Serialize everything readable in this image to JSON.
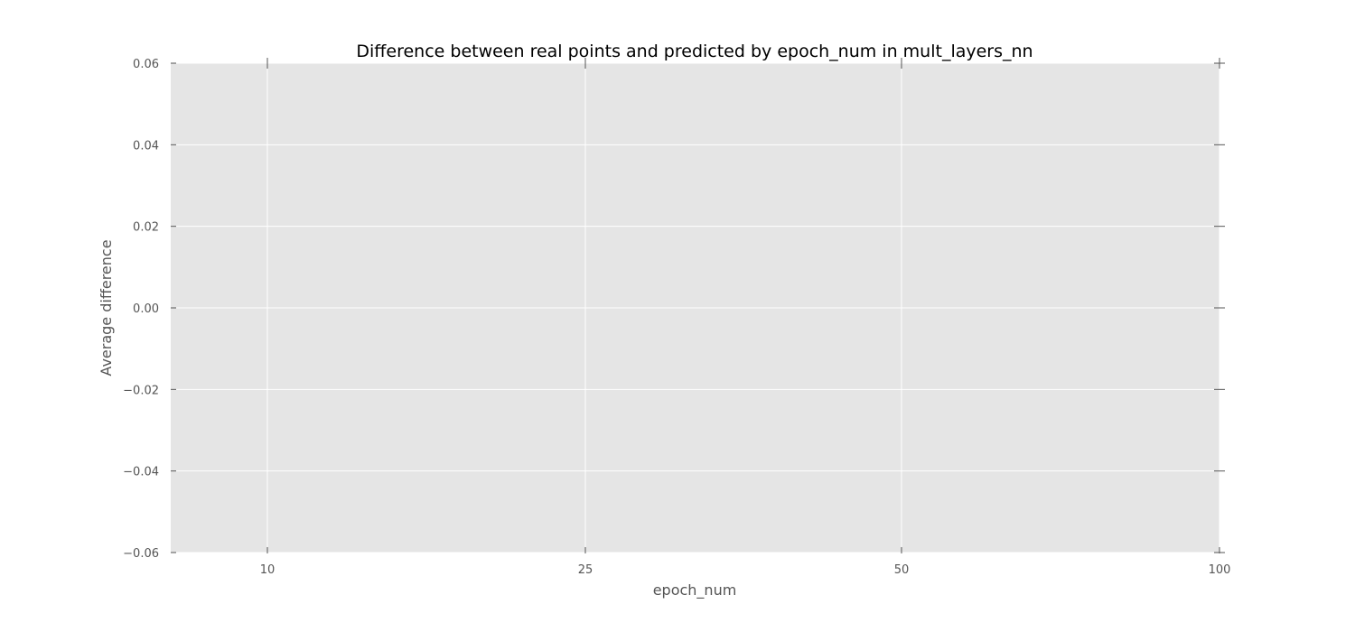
{
  "chart_data": {
    "type": "line",
    "title": "Difference between real points and predicted by epoch_num in mult_layers_nn",
    "xlabel": "epoch_num",
    "ylabel": "Average difference",
    "x_tick_labels": [
      "10",
      "25",
      "50",
      "100"
    ],
    "y_ticks": [
      0.06,
      0.04,
      0.02,
      0.0,
      -0.02,
      -0.04,
      -0.06
    ],
    "y_tick_labels": [
      "0.06",
      "0.04",
      "0.02",
      "0.00",
      "−0.02",
      "−0.04",
      "−0.06"
    ],
    "ylim": [
      -0.06,
      0.06
    ],
    "grid": true,
    "series": []
  },
  "colors": {
    "plot_background": "#e5e5e5",
    "grid": "#ffffff",
    "tick": "#555555"
  }
}
